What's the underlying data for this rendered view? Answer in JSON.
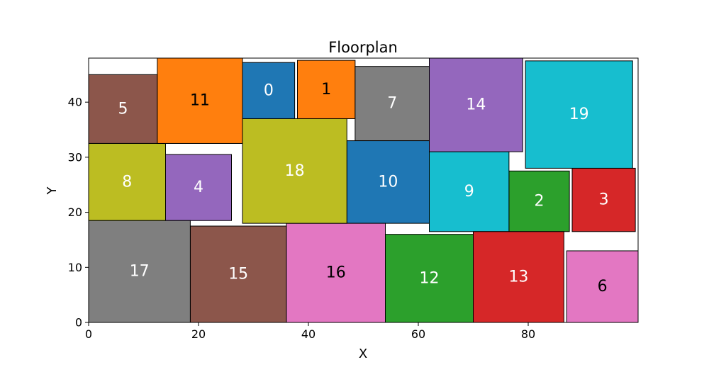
{
  "chart_data": {
    "type": "floorplan",
    "title": "Floorplan",
    "xlabel": "X",
    "ylabel": "Y",
    "xlim": [
      0,
      100
    ],
    "ylim": [
      0,
      48
    ],
    "x_ticks": [
      0,
      20,
      40,
      60,
      80
    ],
    "y_ticks": [
      0,
      10,
      20,
      30,
      40
    ],
    "grid": false,
    "rooms": [
      {
        "id": "0",
        "x": 28,
        "y": 37,
        "w": 9.5,
        "h": 10.2,
        "color": "#1f77b4",
        "label_color": "#ffffff"
      },
      {
        "id": "1",
        "x": 38,
        "y": 37,
        "w": 10.5,
        "h": 10.6,
        "color": "#ff7f0e",
        "label_color": "#000000"
      },
      {
        "id": "2",
        "x": 76.5,
        "y": 16.5,
        "w": 11,
        "h": 11,
        "color": "#2ca02c",
        "label_color": "#ffffff"
      },
      {
        "id": "3",
        "x": 88,
        "y": 16.5,
        "w": 11.5,
        "h": 11.5,
        "color": "#d62728",
        "label_color": "#ffffff"
      },
      {
        "id": "4",
        "x": 14,
        "y": 18.5,
        "w": 12,
        "h": 12,
        "color": "#9467bd",
        "label_color": "#ffffff"
      },
      {
        "id": "5",
        "x": 0,
        "y": 32.5,
        "w": 12.5,
        "h": 12.5,
        "color": "#8c564b",
        "label_color": "#ffffff"
      },
      {
        "id": "6",
        "x": 87,
        "y": 0,
        "w": 13,
        "h": 13,
        "color": "#e377c2",
        "label_color": "#000000"
      },
      {
        "id": "7",
        "x": 48.5,
        "y": 33,
        "w": 13.5,
        "h": 13.5,
        "color": "#7f7f7f",
        "label_color": "#ffffff"
      },
      {
        "id": "8",
        "x": 0,
        "y": 18.5,
        "w": 14,
        "h": 14,
        "color": "#bcbd22",
        "label_color": "#ffffff"
      },
      {
        "id": "9",
        "x": 62,
        "y": 16.5,
        "w": 14.5,
        "h": 14.5,
        "color": "#17becf",
        "label_color": "#ffffff"
      },
      {
        "id": "10",
        "x": 47,
        "y": 18,
        "w": 15,
        "h": 15,
        "color": "#1f77b4",
        "label_color": "#ffffff"
      },
      {
        "id": "11",
        "x": 12.5,
        "y": 32.5,
        "w": 15.5,
        "h": 15.5,
        "color": "#ff7f0e",
        "label_color": "#000000"
      },
      {
        "id": "12",
        "x": 54,
        "y": 0,
        "w": 16,
        "h": 16,
        "color": "#2ca02c",
        "label_color": "#ffffff"
      },
      {
        "id": "13",
        "x": 70,
        "y": 0,
        "w": 16.5,
        "h": 16.5,
        "color": "#d62728",
        "label_color": "#ffffff"
      },
      {
        "id": "14",
        "x": 62,
        "y": 31,
        "w": 17,
        "h": 17,
        "color": "#9467bd",
        "label_color": "#ffffff"
      },
      {
        "id": "15",
        "x": 18.5,
        "y": 0,
        "w": 17.5,
        "h": 17.5,
        "color": "#8c564b",
        "label_color": "#ffffff"
      },
      {
        "id": "16",
        "x": 36,
        "y": 0,
        "w": 18,
        "h": 18,
        "color": "#e377c2",
        "label_color": "#000000"
      },
      {
        "id": "17",
        "x": 0,
        "y": 0,
        "w": 18.5,
        "h": 18.5,
        "color": "#7f7f7f",
        "label_color": "#ffffff"
      },
      {
        "id": "18",
        "x": 28,
        "y": 18,
        "w": 19,
        "h": 19,
        "color": "#bcbd22",
        "label_color": "#ffffff"
      },
      {
        "id": "19",
        "x": 79.5,
        "y": 28,
        "w": 19.5,
        "h": 19.5,
        "color": "#17becf",
        "label_color": "#ffffff"
      }
    ]
  }
}
